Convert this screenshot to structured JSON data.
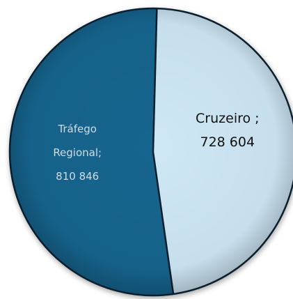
{
  "chart_data": {
    "type": "pie",
    "title": "",
    "slices": [
      {
        "label": "Tráfego Regional",
        "value": 810846,
        "display_label": "Tráfego Regional;",
        "display_value": "810 846",
        "color": "#17658f",
        "label_color": "#d0dbe6"
      },
      {
        "label": "Cruzeiro",
        "value": 728604,
        "display_label": "Cruzeiro ;",
        "display_value": "728 604",
        "color": "#cfe8f6",
        "label_color": "#111111"
      }
    ],
    "legend": "none"
  }
}
